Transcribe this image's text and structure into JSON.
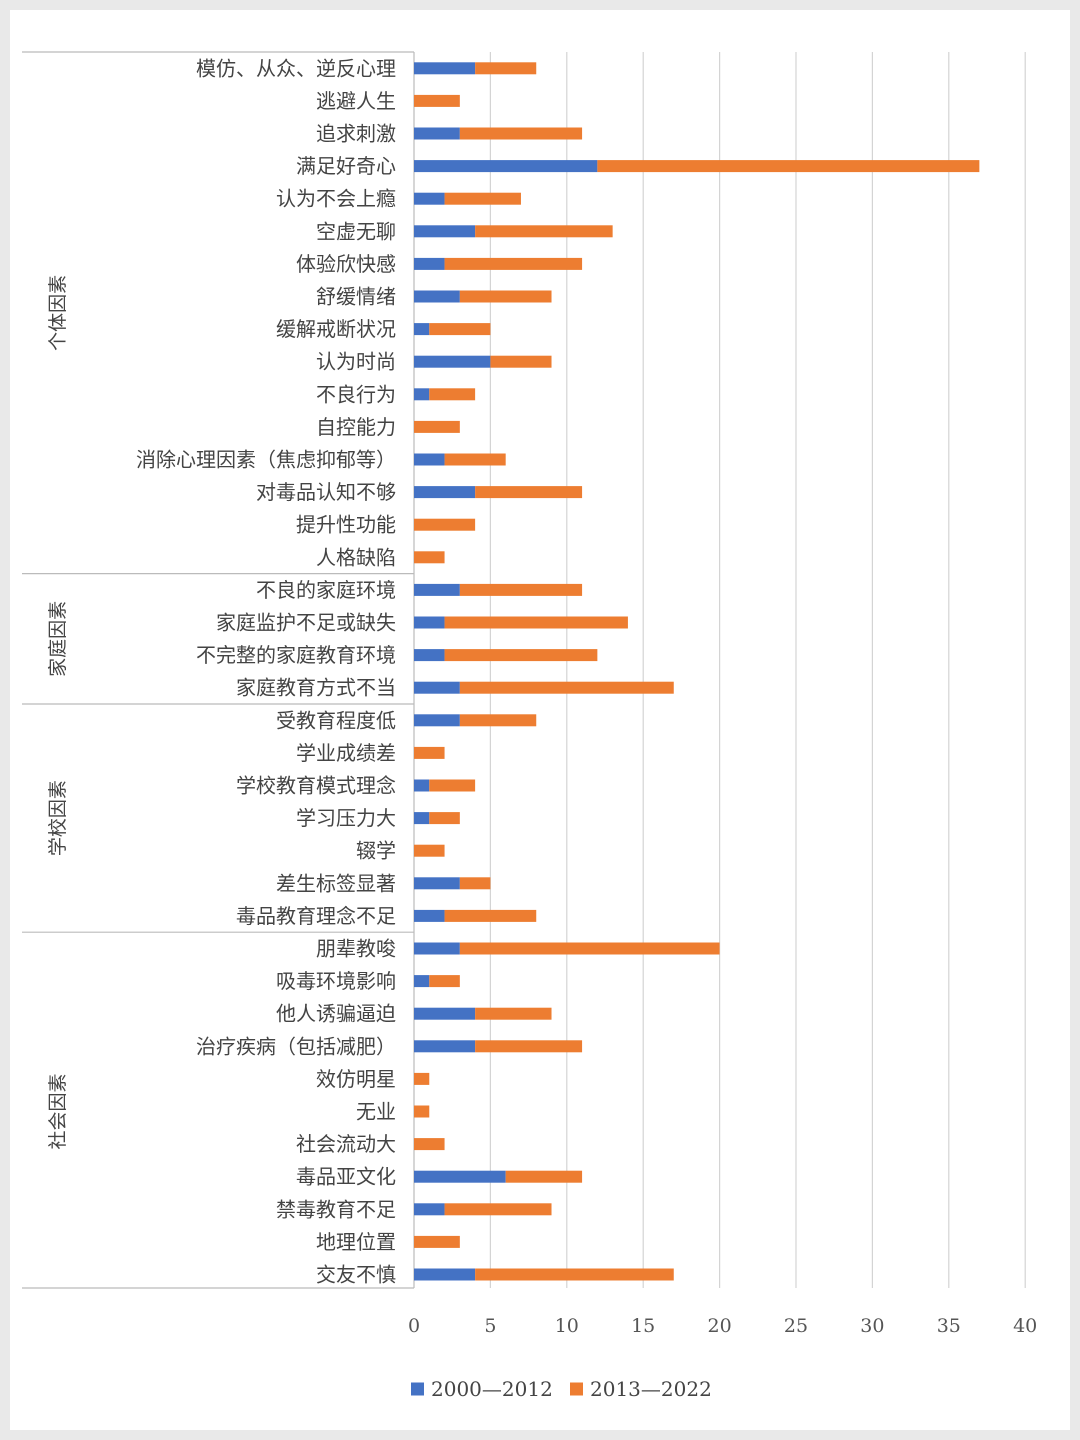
{
  "chart_data": {
    "type": "bar",
    "stacked": true,
    "orientation": "horizontal",
    "xlim": [
      0,
      40
    ],
    "x_ticks": [
      0,
      5,
      10,
      15,
      20,
      25,
      30,
      35,
      40
    ],
    "grid": true,
    "legend_position": "bottom",
    "colors": {
      "series1": "#4472c4",
      "series2": "#ed7d31"
    },
    "groups": [
      {
        "label": "个体因素",
        "start": 0,
        "end": 15
      },
      {
        "label": "家庭因素",
        "start": 16,
        "end": 19
      },
      {
        "label": "学校因素",
        "start": 20,
        "end": 26
      },
      {
        "label": "社会因素",
        "start": 27,
        "end": 37
      }
    ],
    "categories": [
      "模仿、从众、逆反心理",
      "逃避人生",
      "追求刺激",
      "满足好奇心",
      "认为不会上瘾",
      "空虚无聊",
      "体验欣快感",
      "舒缓情绪",
      "缓解戒断状况",
      "认为时尚",
      "不良行为",
      "自控能力",
      "消除心理因素（焦虑抑郁等）",
      "对毒品认知不够",
      "提升性功能",
      "人格缺陷",
      "不良的家庭环境",
      "家庭监护不足或缺失",
      "不完整的家庭教育环境",
      "家庭教育方式不当",
      "受教育程度低",
      "学业成绩差",
      "学校教育模式理念",
      "学习压力大",
      "辍学",
      "差生标签显著",
      "毒品教育理念不足",
      "朋辈教唆",
      "吸毒环境影响",
      "他人诱骗逼迫",
      "治疗疾病（包括减肥）",
      "效仿明星",
      "无业",
      "社会流动大",
      "毒品亚文化",
      "禁毒教育不足",
      "地理位置",
      "交友不慎"
    ],
    "series": [
      {
        "name": "2000—2012",
        "values": [
          4,
          0,
          3,
          12,
          2,
          4,
          2,
          3,
          1,
          5,
          1,
          0,
          2,
          4,
          0,
          0,
          3,
          2,
          2,
          3,
          3,
          0,
          1,
          1,
          0,
          3,
          2,
          3,
          1,
          4,
          4,
          0,
          0,
          0,
          6,
          2,
          0,
          4
        ]
      },
      {
        "name": "2013—2022",
        "values": [
          4,
          3,
          8,
          25,
          5,
          9,
          9,
          6,
          4,
          4,
          3,
          3,
          4,
          7,
          4,
          2,
          8,
          12,
          10,
          14,
          5,
          2,
          3,
          2,
          2,
          2,
          6,
          17,
          2,
          5,
          7,
          1,
          1,
          2,
          5,
          7,
          3,
          13
        ]
      }
    ]
  }
}
